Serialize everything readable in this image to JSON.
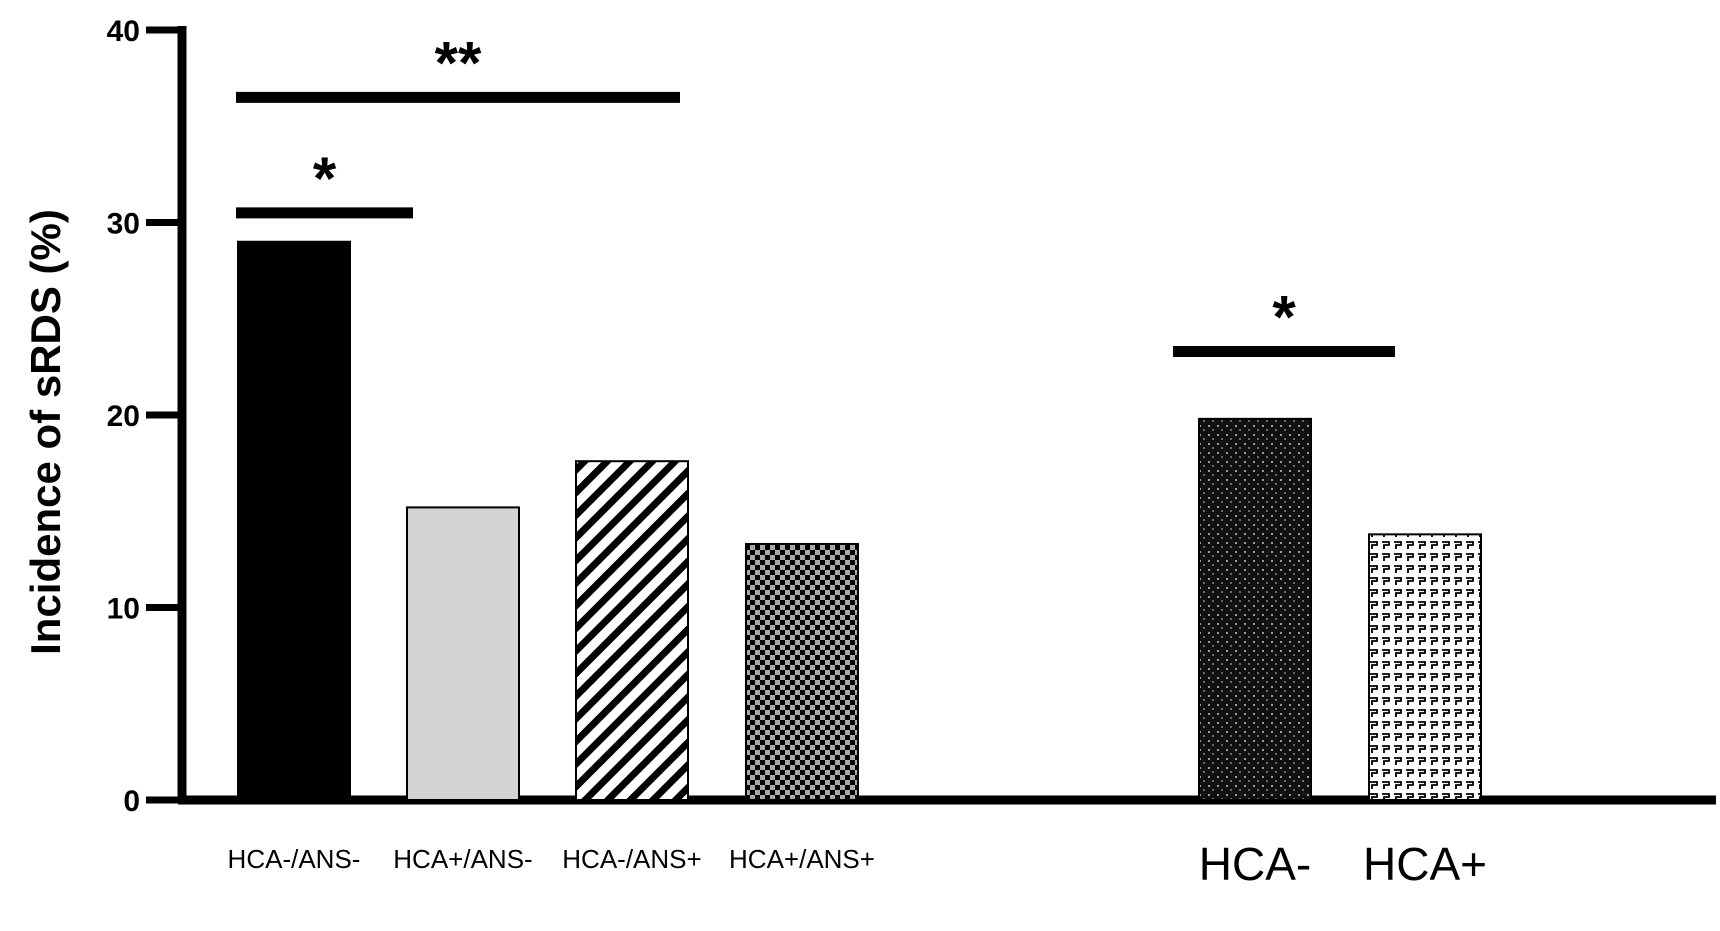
{
  "chart_data": {
    "type": "bar",
    "title": "",
    "xlabel": "",
    "ylabel": "Incidence of  sRDS (%)",
    "ylim": [
      0,
      40
    ],
    "yticks": [
      0,
      10,
      20,
      30,
      40
    ],
    "grid": false,
    "legend": "none",
    "groups": [
      {
        "categories": [
          "HCA-/ANS-",
          "HCA+/ANS-",
          "HCA-/ANS+",
          "HCA+/ANS+"
        ],
        "values": [
          29.0,
          15.2,
          17.6,
          13.3
        ],
        "patterns": [
          "solid-black",
          "solid-lightgray",
          "diagonal-stripes",
          "checkerboard"
        ]
      },
      {
        "categories": [
          "HCA-",
          "HCA+"
        ],
        "values": [
          19.8,
          13.8
        ],
        "patterns": [
          "dark-dotted",
          "white-squiggle"
        ]
      }
    ],
    "annotations": [
      {
        "text": "**",
        "from": "HCA-/ANS-",
        "to": "HCA-/ANS+"
      },
      {
        "text": "*",
        "from": "HCA-/ANS-",
        "to": "HCA+/ANS-"
      },
      {
        "text": "*",
        "from": "HCA-",
        "to": "HCA+"
      }
    ]
  },
  "colors": {
    "axis": "#000000",
    "bar_black": "#000000",
    "bar_lightgray": "#d4d4d4",
    "pattern_gray": "#a8a8a8"
  }
}
